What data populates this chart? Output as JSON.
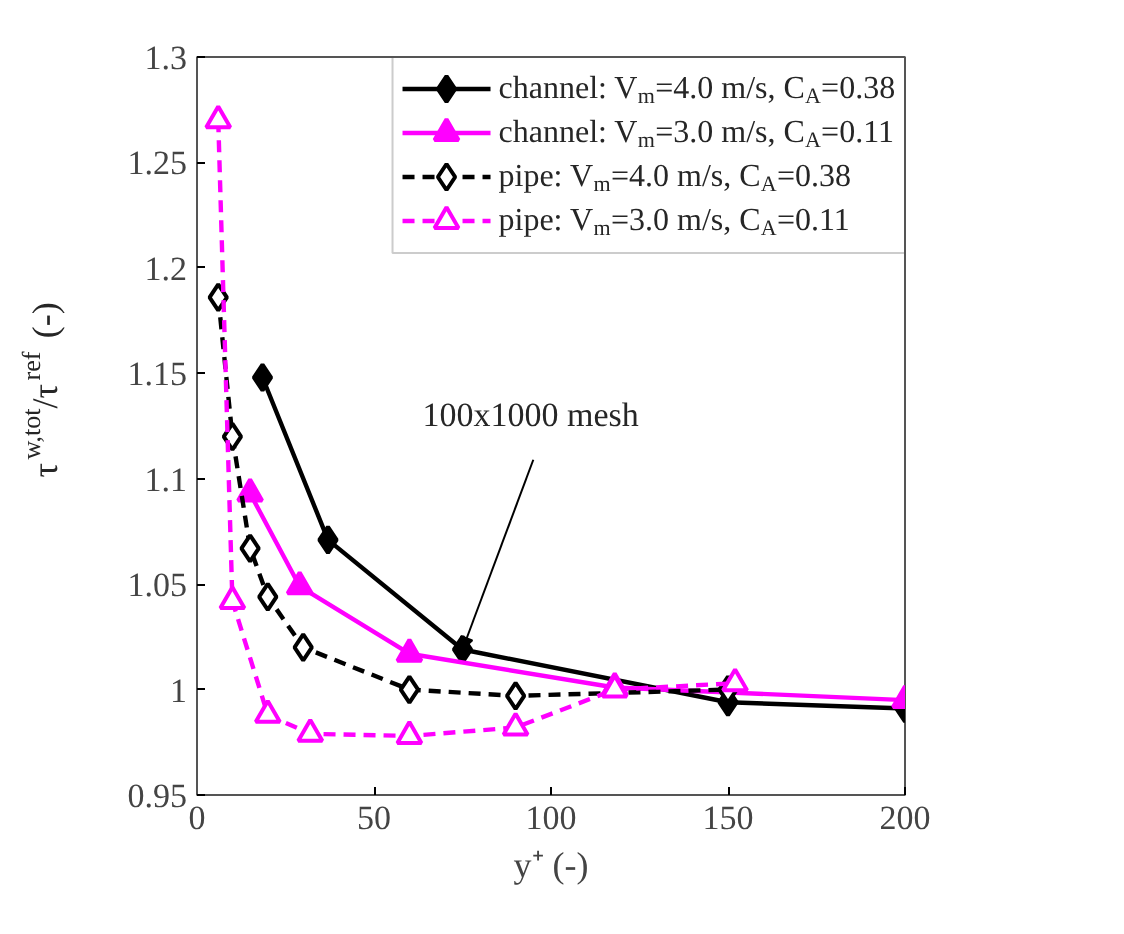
{
  "chart_data": {
    "type": "line",
    "xlabel": "y⁺ (-)",
    "ylabel": "τ$^{w,tot}$/τ$^{ref}$ (-)",
    "xlim": [
      0,
      200
    ],
    "xticks": [
      0,
      50,
      100,
      150,
      200
    ],
    "ylim": [
      0.95,
      1.3
    ],
    "yticks": [
      0.95,
      1,
      1.05,
      1.1,
      1.15,
      1.2,
      1.25,
      1.3
    ],
    "grid": false,
    "legend": "top right",
    "series": [
      {
        "name": "channel: V$_{m}$=4.0 m/s, C$_{A}$=0.38",
        "color": "#000000",
        "marker": "diamond",
        "line_style": "solid",
        "x": [
          18.5,
          37,
          75,
          150,
          200
        ],
        "values": [
          1.148,
          1.071,
          1.019,
          0.994,
          0.991
        ]
      },
      {
        "name": "channel: V$_{m}$=3.0 m/s, C$_{A}$=0.11",
        "color": "#ff00ff",
        "marker": "triangle",
        "line_style": "solid",
        "x": [
          15,
          29,
          60,
          118,
          200
        ],
        "values": [
          1.093,
          1.049,
          1.017,
          1.001,
          0.995
        ]
      },
      {
        "name": "pipe: V$_{m}$=4.0 m/s, C$_{A}$=0.38",
        "color": "#000000",
        "marker": "diamond",
        "line_style": "dashed",
        "x": [
          6,
          10,
          15,
          20,
          30,
          60,
          90,
          150
        ],
        "values": [
          1.186,
          1.12,
          1.067,
          1.044,
          1.02,
          1.0,
          0.997,
          1.0
        ]
      },
      {
        "name": "pipe: V$_{m}$=3.0 m/s, C$_{A}$=0.11",
        "color": "#ff00ff",
        "marker": "triangle",
        "line_style": "dashed",
        "x": [
          6,
          10,
          20,
          32,
          60,
          90,
          118,
          152
        ],
        "values": [
          1.27,
          1.042,
          0.988,
          0.979,
          0.978,
          0.982,
          1.0,
          1.003
        ]
      }
    ],
    "annotations": [
      {
        "text": "100x1000 mesh",
        "x": 75,
        "y": 1.019
      }
    ]
  }
}
